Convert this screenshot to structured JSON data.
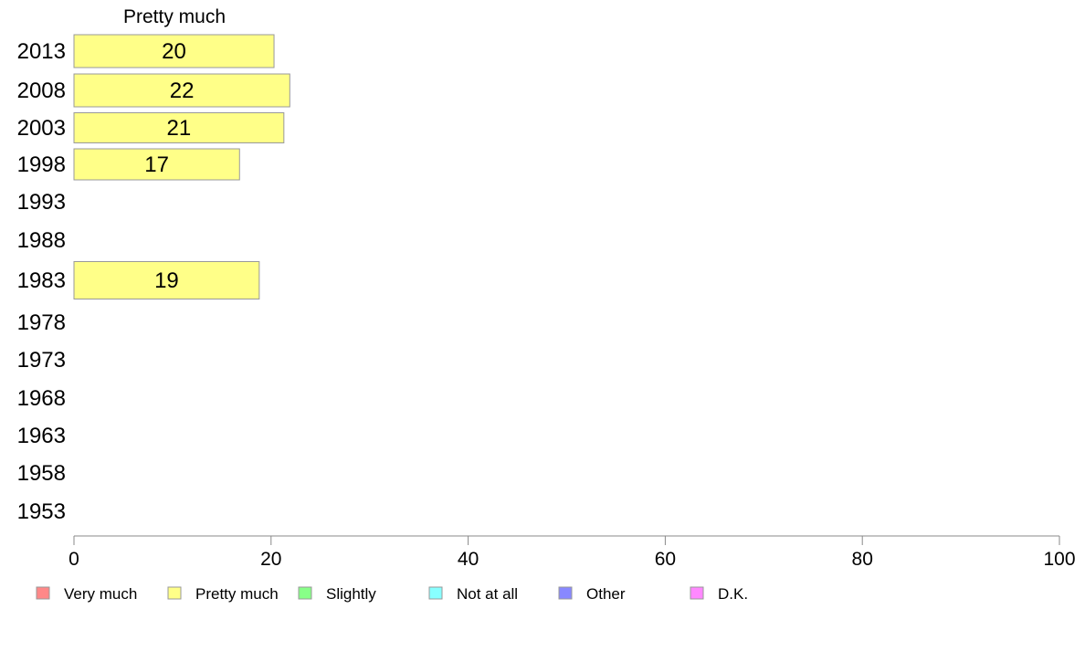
{
  "chart_data": {
    "type": "bar",
    "orientation": "horizontal",
    "column_title": "Pretty much",
    "categories": [
      "2013",
      "2008",
      "2003",
      "1998",
      "1993",
      "1988",
      "1983",
      "1978",
      "1973",
      "1968",
      "1963",
      "1958",
      "1953"
    ],
    "series": [
      {
        "name": "Pretty much",
        "color": "#ffff88",
        "values": [
          20.3,
          21.9,
          21.3,
          16.8,
          null,
          null,
          18.8,
          null,
          null,
          null,
          null,
          null,
          null
        ],
        "labels": [
          "20",
          "22",
          "21",
          "17",
          "",
          "",
          "19",
          "",
          "",
          "",
          "",
          "",
          ""
        ]
      }
    ],
    "xlim": [
      0,
      100
    ],
    "xticks": [
      "0",
      "20",
      "40",
      "60",
      "80",
      "100"
    ],
    "grid": false,
    "legend_position": "bottom",
    "legend": [
      {
        "label": "Very much",
        "color": "#ff8888"
      },
      {
        "label": "Pretty much",
        "color": "#ffff88"
      },
      {
        "label": "Slightly",
        "color": "#88ff88"
      },
      {
        "label": "Not at all",
        "color": "#88ffff"
      },
      {
        "label": "Other",
        "color": "#8888ff"
      },
      {
        "label": "D.K.",
        "color": "#ff88ff"
      }
    ]
  }
}
